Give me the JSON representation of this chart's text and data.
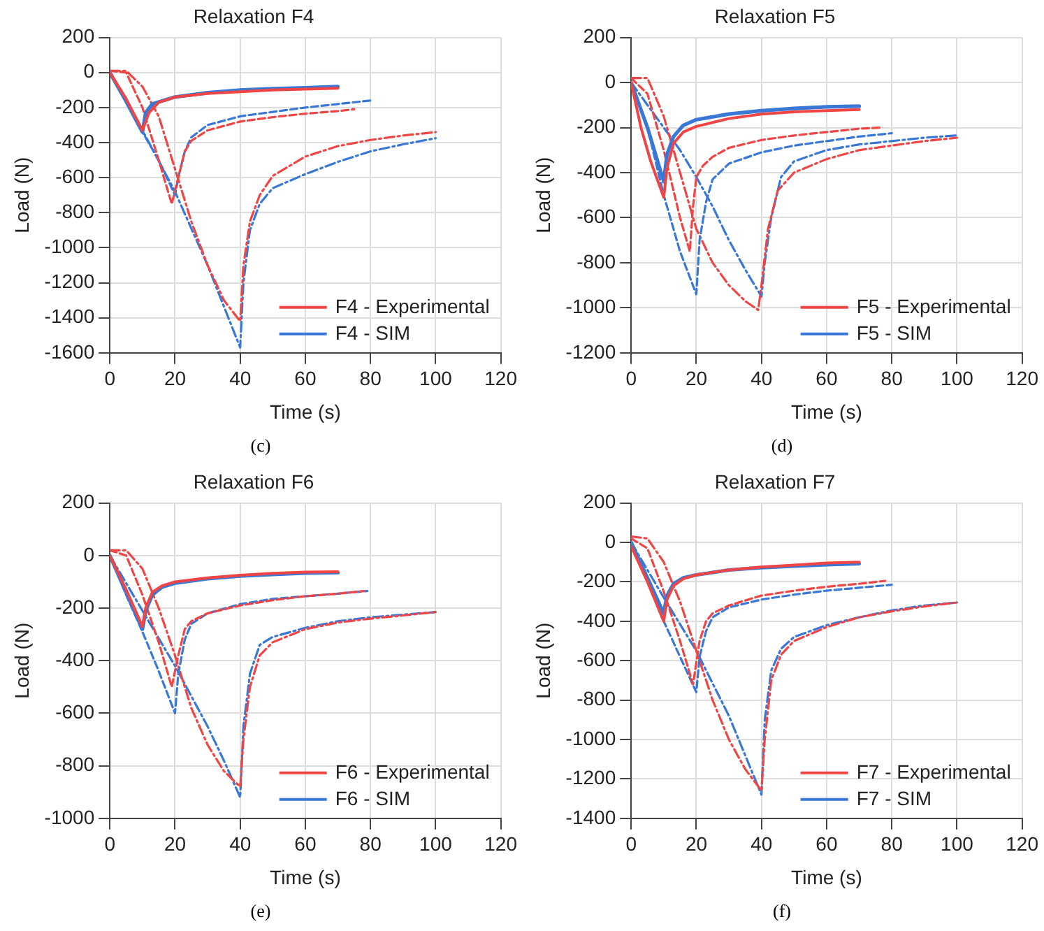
{
  "chart_data": [
    {
      "type": "line",
      "title": "Relaxation F4",
      "xlabel": "Time (s)",
      "ylabel": "Load (N)",
      "annotations": [
        "(c)"
      ],
      "xlim": [
        0,
        120
      ],
      "xticks": [
        0,
        20,
        40,
        60,
        80,
        100,
        120
      ],
      "ylim": [
        -1600,
        200
      ],
      "yticks": [
        -1600,
        -1400,
        -1200,
        -1000,
        -800,
        -600,
        -400,
        -200,
        0,
        200
      ],
      "grid": true,
      "legend": "bottom right",
      "series": [
        {
          "name": "F4 - Experimental",
          "color": "#f04545",
          "line_style": "solid",
          "x": [
            0,
            5,
            10,
            12,
            15,
            20,
            30,
            40,
            50,
            60,
            70
          ],
          "values": [
            0,
            -150,
            -330,
            -230,
            -170,
            -140,
            -120,
            -110,
            -100,
            -95,
            -90
          ]
        },
        {
          "name": "F4 - SIM",
          "color": "#3a78d8",
          "line_style": "solid",
          "x": [
            0,
            5,
            10,
            11,
            13,
            20,
            30,
            40,
            50,
            60,
            70
          ],
          "values": [
            0,
            -165,
            -340,
            -230,
            -180,
            -140,
            -115,
            -100,
            -92,
            -87,
            -80
          ]
        },
        {
          "color": "#f04545",
          "line_style": "dashed",
          "x": [
            0,
            5,
            10,
            15,
            19,
            21,
            23,
            25,
            30,
            40,
            50,
            60,
            70,
            75
          ],
          "values": [
            10,
            0,
            -200,
            -500,
            -750,
            -600,
            -450,
            -390,
            -330,
            -280,
            -255,
            -235,
            -220,
            -210
          ]
        },
        {
          "color": "#3a78d8",
          "line_style": "dashed",
          "x": [
            0,
            5,
            10,
            15,
            20,
            21,
            23,
            25,
            30,
            40,
            50,
            60,
            70,
            80
          ],
          "values": [
            0,
            -170,
            -340,
            -500,
            -700,
            -600,
            -450,
            -370,
            -300,
            -250,
            -225,
            -200,
            -180,
            -160
          ]
        },
        {
          "color": "#f04545",
          "line_style": "dashdot",
          "x": [
            0,
            5,
            10,
            15,
            20,
            25,
            30,
            35,
            40,
            41,
            43,
            46,
            50,
            60,
            70,
            80,
            90,
            100
          ],
          "values": [
            10,
            10,
            -80,
            -250,
            -550,
            -850,
            -1100,
            -1300,
            -1420,
            -1100,
            -850,
            -700,
            -590,
            -480,
            -420,
            -385,
            -360,
            -340
          ]
        },
        {
          "color": "#3a78d8",
          "line_style": "dashdot",
          "x": [
            0,
            10,
            20,
            30,
            40,
            41,
            43,
            46,
            50,
            60,
            70,
            80,
            90,
            100
          ],
          "values": [
            0,
            -330,
            -680,
            -1100,
            -1570,
            -1200,
            -900,
            -750,
            -660,
            -580,
            -510,
            -450,
            -410,
            -375
          ]
        }
      ]
    },
    {
      "type": "line",
      "title": "Relaxation F5",
      "xlabel": "Time (s)",
      "ylabel": "Load (N)",
      "annotations": [
        "(d)"
      ],
      "xlim": [
        0,
        120
      ],
      "xticks": [
        0,
        20,
        40,
        60,
        80,
        100,
        120
      ],
      "ylim": [
        -1200,
        200
      ],
      "yticks": [
        -1200,
        -1000,
        -800,
        -600,
        -400,
        -200,
        0,
        200
      ],
      "grid": true,
      "legend": "bottom right",
      "series": [
        {
          "name": "F5 - Experimental",
          "color": "#f04545",
          "line_style": "solid",
          "x": [
            0,
            3,
            6,
            10,
            11,
            13,
            16,
            20,
            30,
            40,
            50,
            60,
            70
          ],
          "values": [
            0,
            -200,
            -350,
            -510,
            -380,
            -270,
            -220,
            -195,
            -160,
            -140,
            -130,
            -125,
            -120
          ]
        },
        {
          "name": "F5 - SIM",
          "color": "#3a78d8",
          "line_style": "solid",
          "x": [
            0,
            5,
            10,
            11,
            13,
            16,
            20,
            30,
            40,
            50,
            60,
            70
          ],
          "values": [
            0,
            -200,
            -440,
            -320,
            -240,
            -190,
            -165,
            -140,
            -125,
            -115,
            -108,
            -105
          ]
        },
        {
          "color": "#f04545",
          "line_style": "dashed",
          "x": [
            0,
            5,
            10,
            15,
            18,
            19,
            20,
            22,
            25,
            30,
            40,
            50,
            60,
            70,
            77
          ],
          "values": [
            20,
            -50,
            -300,
            -600,
            -750,
            -550,
            -420,
            -370,
            -330,
            -290,
            -255,
            -235,
            -220,
            -205,
            -200
          ]
        },
        {
          "color": "#3a78d8",
          "line_style": "dashed",
          "x": [
            0,
            5,
            10,
            15,
            20,
            21,
            23,
            25,
            30,
            40,
            50,
            60,
            70,
            80
          ],
          "values": [
            0,
            -200,
            -500,
            -750,
            -940,
            -700,
            -530,
            -430,
            -360,
            -310,
            -280,
            -260,
            -240,
            -225
          ]
        },
        {
          "color": "#f04545",
          "line_style": "dashdot",
          "x": [
            0,
            5,
            10,
            15,
            20,
            25,
            30,
            35,
            39,
            40,
            42,
            45,
            50,
            60,
            70,
            80,
            90,
            100
          ],
          "values": [
            20,
            20,
            -150,
            -400,
            -650,
            -800,
            -900,
            -970,
            -1010,
            -900,
            -650,
            -480,
            -400,
            -340,
            -300,
            -280,
            -260,
            -245
          ]
        },
        {
          "color": "#3a78d8",
          "line_style": "dashdot",
          "x": [
            0,
            5,
            10,
            15,
            20,
            25,
            30,
            35,
            40,
            41,
            43,
            46,
            50,
            60,
            70,
            80,
            90,
            100
          ],
          "values": [
            0,
            -100,
            -200,
            -300,
            -420,
            -550,
            -700,
            -830,
            -950,
            -800,
            -600,
            -420,
            -350,
            -300,
            -275,
            -260,
            -245,
            -235
          ]
        }
      ]
    },
    {
      "type": "line",
      "title": "Relaxation F6",
      "xlabel": "Time (s)",
      "ylabel": "Load (N)",
      "annotations": [
        "(e)"
      ],
      "xlim": [
        0,
        120
      ],
      "xticks": [
        0,
        20,
        40,
        60,
        80,
        100,
        120
      ],
      "ylim": [
        -1000,
        200
      ],
      "yticks": [
        -1000,
        -800,
        -600,
        -400,
        -200,
        0,
        200
      ],
      "grid": true,
      "legend": "bottom right",
      "series": [
        {
          "name": "F6 - Experimental",
          "color": "#f04545",
          "line_style": "solid",
          "x": [
            0,
            5,
            10,
            11,
            13,
            16,
            20,
            30,
            40,
            50,
            60,
            70
          ],
          "values": [
            0,
            -130,
            -270,
            -200,
            -140,
            -115,
            -100,
            -85,
            -75,
            -68,
            -63,
            -62
          ]
        },
        {
          "name": "F6 - SIM",
          "color": "#3a78d8",
          "line_style": "solid",
          "x": [
            0,
            5,
            10,
            11,
            13,
            16,
            20,
            30,
            40,
            50,
            60,
            70
          ],
          "values": [
            0,
            -140,
            -280,
            -210,
            -150,
            -120,
            -105,
            -88,
            -78,
            -72,
            -67,
            -65
          ]
        },
        {
          "color": "#f04545",
          "line_style": "dashed",
          "x": [
            0,
            5,
            10,
            15,
            19,
            21,
            23,
            25,
            30,
            40,
            50,
            60,
            70,
            78
          ],
          "values": [
            20,
            0,
            -150,
            -330,
            -500,
            -380,
            -280,
            -250,
            -220,
            -190,
            -170,
            -155,
            -145,
            -135
          ]
        },
        {
          "color": "#3a78d8",
          "line_style": "dashed",
          "x": [
            0,
            5,
            10,
            15,
            20,
            21,
            23,
            25,
            30,
            40,
            50,
            60,
            70,
            79
          ],
          "values": [
            0,
            -150,
            -290,
            -440,
            -600,
            -450,
            -320,
            -260,
            -220,
            -185,
            -165,
            -155,
            -145,
            -135
          ]
        },
        {
          "color": "#f04545",
          "line_style": "dashdot",
          "x": [
            0,
            5,
            10,
            15,
            20,
            25,
            30,
            35,
            40,
            41,
            43,
            46,
            50,
            60,
            70,
            80,
            90,
            100
          ],
          "values": [
            20,
            20,
            -50,
            -200,
            -380,
            -580,
            -720,
            -820,
            -880,
            -700,
            -500,
            -380,
            -330,
            -280,
            -255,
            -240,
            -228,
            -215
          ]
        },
        {
          "color": "#3a78d8",
          "line_style": "dashdot",
          "x": [
            0,
            10,
            20,
            30,
            35,
            40,
            41,
            43,
            46,
            50,
            60,
            70,
            80,
            90,
            100
          ],
          "values": [
            0,
            -210,
            -420,
            -650,
            -780,
            -920,
            -650,
            -450,
            -340,
            -310,
            -275,
            -250,
            -235,
            -225,
            -215
          ]
        }
      ]
    },
    {
      "type": "line",
      "title": "Relaxation F7",
      "xlabel": "Time (s)",
      "ylabel": "Load (N)",
      "annotations": [
        "(f)"
      ],
      "xlim": [
        0,
        120
      ],
      "xticks": [
        0,
        20,
        40,
        60,
        80,
        100,
        120
      ],
      "ylim": [
        -1400,
        200
      ],
      "yticks": [
        -1400,
        -1200,
        -1000,
        -800,
        -600,
        -400,
        -200,
        0,
        200
      ],
      "grid": true,
      "legend": "bottom right",
      "series": [
        {
          "name": "F7 - Experimental",
          "color": "#f04545",
          "line_style": "solid",
          "x": [
            0,
            5,
            10,
            11,
            13,
            16,
            20,
            30,
            40,
            50,
            60,
            70
          ],
          "values": [
            -20,
            -200,
            -400,
            -290,
            -220,
            -185,
            -165,
            -140,
            -125,
            -115,
            -105,
            -100
          ]
        },
        {
          "name": "F7 - SIM",
          "color": "#3a78d8",
          "line_style": "solid",
          "x": [
            0,
            5,
            10,
            11,
            13,
            16,
            20,
            30,
            40,
            50,
            60,
            70
          ],
          "values": [
            0,
            -180,
            -360,
            -270,
            -210,
            -180,
            -165,
            -140,
            -128,
            -120,
            -113,
            -108
          ]
        },
        {
          "color": "#f04545",
          "line_style": "dashed",
          "x": [
            0,
            5,
            10,
            15,
            19,
            21,
            23,
            25,
            30,
            40,
            50,
            60,
            70,
            78
          ],
          "values": [
            20,
            -30,
            -250,
            -500,
            -720,
            -500,
            -400,
            -360,
            -320,
            -270,
            -245,
            -225,
            -210,
            -195
          ]
        },
        {
          "color": "#3a78d8",
          "line_style": "dashed",
          "x": [
            0,
            5,
            10,
            15,
            20,
            21,
            23,
            25,
            30,
            40,
            50,
            60,
            70,
            80
          ],
          "values": [
            0,
            -200,
            -400,
            -580,
            -760,
            -580,
            -450,
            -380,
            -330,
            -290,
            -265,
            -245,
            -230,
            -215
          ]
        },
        {
          "color": "#f04545",
          "line_style": "dashdot",
          "x": [
            0,
            5,
            10,
            15,
            20,
            25,
            30,
            35,
            40,
            41,
            43,
            46,
            50,
            60,
            70,
            80,
            90,
            100
          ],
          "values": [
            30,
            20,
            -100,
            -300,
            -550,
            -800,
            -1000,
            -1150,
            -1260,
            -1000,
            -700,
            -570,
            -500,
            -430,
            -380,
            -350,
            -325,
            -305
          ]
        },
        {
          "color": "#3a78d8",
          "line_style": "dashdot",
          "x": [
            0,
            10,
            20,
            30,
            40,
            41,
            43,
            46,
            50,
            60,
            70,
            80,
            90,
            100
          ],
          "values": [
            0,
            -280,
            -550,
            -880,
            -1280,
            -900,
            -650,
            -540,
            -480,
            -420,
            -380,
            -345,
            -320,
            -305
          ]
        }
      ]
    }
  ]
}
